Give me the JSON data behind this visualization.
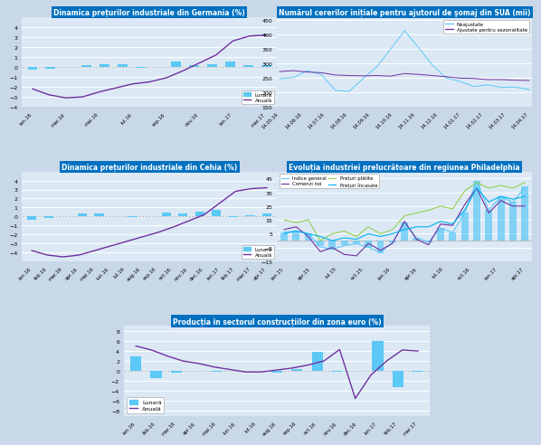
{
  "fig_bg": "#c8d8e8",
  "panel1": {
    "title": "Dinamica prețurilor industriale din Germania (%)",
    "bar_color": "#5bc8f5",
    "line_color": "#7030a0",
    "bar_data": [
      -0.3,
      -0.2,
      0.0,
      0.2,
      0.3,
      0.3,
      -0.1,
      0.0,
      0.5,
      0.2,
      0.3,
      0.5,
      0.2,
      0.2
    ],
    "line_data": [
      -2.2,
      -2.8,
      -3.1,
      -3.0,
      -2.5,
      -2.1,
      -1.7,
      -1.5,
      -1.1,
      -0.4,
      0.4,
      1.2,
      2.6,
      3.1,
      3.2
    ],
    "xticks": [
      "ian.16",
      "mar.16",
      "mai.16",
      "iul.16",
      "sep.16",
      "nov.16",
      "ian.17",
      "mar.17"
    ],
    "ylim": [
      -4,
      5
    ],
    "yticks": [
      -4,
      -3,
      -2,
      -1,
      0,
      1,
      2,
      3,
      4
    ],
    "legend_lunara": "Lunară",
    "legend_anuala": "Anuală"
  },
  "panel2": {
    "title": "Numărul cererilor inițiale pentru ajutorul de şomaj din SUA (mii)",
    "line1_color": "#5bc8f5",
    "line2_color": "#7030a0",
    "line1_label": "Neajustate",
    "line2_label": "Ajustate pentru sezonalitate",
    "xticks": [
      "14.05.16",
      "14.06.16",
      "14.07.16",
      "14.08.16",
      "14.09.16",
      "14.10.16",
      "14.11.16",
      "14.12.16",
      "14.01.17",
      "14.02.17",
      "14.03.17",
      "14.04.17"
    ],
    "ylim": [
      150,
      460
    ],
    "yticks": [
      150,
      200,
      250,
      300,
      350,
      400,
      450
    ],
    "line1_data": [
      247,
      251,
      275,
      262,
      207,
      203,
      247,
      288,
      349,
      413,
      355,
      295,
      250,
      238,
      220,
      226,
      217,
      218,
      210
    ],
    "line2_data": [
      272,
      275,
      270,
      268,
      260,
      258,
      257,
      258,
      256,
      265,
      262,
      258,
      254,
      249,
      248,
      244,
      244,
      242,
      241
    ]
  },
  "panel3": {
    "title": "Dinamica prețurilor industriale din Cehia (%)",
    "bar_color": "#5bc8f5",
    "line_color": "#7030a0",
    "bar_data": [
      -0.4,
      -0.2,
      0.0,
      0.3,
      0.3,
      0.0,
      -0.1,
      0.0,
      0.4,
      0.3,
      0.5,
      0.7,
      -0.1,
      0.1,
      0.3
    ],
    "line_data": [
      -3.8,
      -4.3,
      -4.5,
      -4.3,
      -3.8,
      -3.3,
      -2.8,
      -2.3,
      -1.8,
      -1.2,
      -0.5,
      0.2,
      1.5,
      2.8,
      3.1,
      3.2
    ],
    "xticks": [
      "ian.16",
      "feb.16",
      "mar.16",
      "apr.16",
      "mai.16",
      "iun.16",
      "iul.16",
      "aug.16",
      "sep.16",
      "oct.16",
      "nov.16",
      "dec.16",
      "ian.17",
      "feb.17",
      "mar.17",
      "apr.17"
    ],
    "ylim": [
      -5,
      5
    ],
    "yticks": [
      -4,
      -3,
      -2,
      -1,
      0,
      1,
      2,
      3,
      4
    ],
    "legend_lunara": "Lunară",
    "legend_anuala": "Anuală"
  },
  "panel4": {
    "title": "Evoluția industriei prelucrătoare din regiunea Philadelphia",
    "line1_color": "#5bc8f5",
    "line2_color": "#7030a0",
    "line3_color": "#92d050",
    "line4_color": "#00b0f0",
    "bar_color": "#5bc8f5",
    "line1_label": "Indice general",
    "line2_label": "Comenzi noi",
    "line3_label": "Prețuri plătite",
    "line4_label": "Prețuri Încasate",
    "xticks": [
      "ian.15",
      "apr.15",
      "iul.15",
      "oct.15",
      "ian.16",
      "apr.16",
      "iul.16",
      "oct.16",
      "ian.17",
      "apr.17"
    ],
    "ylim": [
      -15,
      50
    ],
    "yticks": [
      -15,
      -5,
      5,
      15,
      25,
      35,
      45
    ],
    "line1_data": [
      6.3,
      6.7,
      5.0,
      -4.5,
      -6.3,
      -3.5,
      -2.2,
      -4.7,
      -8.6,
      -1.3,
      12.8,
      2.0,
      -0.9,
      9.0,
      5.9,
      19.8,
      43.3,
      22.0,
      32.0,
      27.6,
      38.8
    ],
    "line2_data": [
      8.1,
      10.0,
      3.0,
      -8.0,
      -5.0,
      -10.0,
      -11.0,
      -2.0,
      -7.0,
      -2.0,
      14.0,
      1.0,
      -3.0,
      12.0,
      11.0,
      26.0,
      38.0,
      20.0,
      29.0,
      25.0,
      25.0
    ],
    "line3_data": [
      15.0,
      13.0,
      15.0,
      0.0,
      5.0,
      7.0,
      3.0,
      10.0,
      5.0,
      8.0,
      18.0,
      20.0,
      22.0,
      25.0,
      23.0,
      36.0,
      42.0,
      38.0,
      40.0,
      38.0,
      42.0
    ],
    "line4_data": [
      5.0,
      7.0,
      5.0,
      3.0,
      0.0,
      2.0,
      1.0,
      5.0,
      3.0,
      5.0,
      8.0,
      10.0,
      10.0,
      14.0,
      12.0,
      22.0,
      38.0,
      28.0,
      32.0,
      30.0,
      32.0
    ],
    "bar_data": [
      6,
      7,
      5,
      -4,
      -6,
      -3,
      -2,
      -5,
      -9,
      -1,
      13,
      2,
      -1,
      9,
      6,
      20,
      43,
      22,
      32,
      28,
      39
    ]
  },
  "panel5": {
    "title": "Producția în sectorul construcțiilor din zona euro (%)",
    "bar_color": "#5bc8f5",
    "line_color": "#7030a0",
    "bar_data": [
      3.0,
      -1.5,
      -0.3,
      0.1,
      -0.1,
      0.0,
      0.1,
      -0.3,
      0.4,
      3.8,
      -0.2,
      0.0,
      6.0,
      -3.2,
      -0.2
    ],
    "line_data": [
      5.0,
      4.2,
      3.0,
      2.0,
      1.5,
      0.8,
      0.3,
      -0.2,
      -0.2,
      0.2,
      0.6,
      1.2,
      2.0,
      4.3,
      -5.5,
      -0.8,
      2.0,
      4.2,
      4.0
    ],
    "xticks": [
      "ian.16",
      "feb.16",
      "mar.16",
      "apr.16",
      "mai.16",
      "iun.16",
      "iul.16",
      "aug.16",
      "sep.16",
      "oct.16",
      "nov.16",
      "dec.16",
      "ian.17",
      "feb.17",
      "mar.17"
    ],
    "ylim": [
      -9,
      9
    ],
    "yticks": [
      -8,
      -6,
      -4,
      -2,
      0,
      2,
      4,
      6,
      8
    ],
    "legend_lunara": "Lunară",
    "legend_anuala": "Anuală"
  }
}
